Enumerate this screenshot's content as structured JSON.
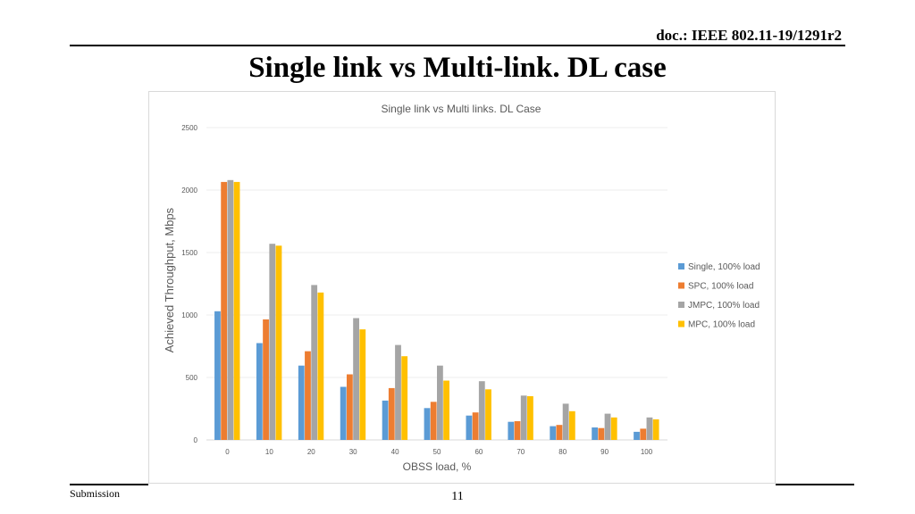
{
  "header": {
    "doc_id": "doc.: IEEE 802.11-19/1291r2"
  },
  "slide": {
    "title": "Single link vs Multi-link. DL case"
  },
  "footer": {
    "submission": "Submission",
    "page": "11"
  },
  "chart_data": {
    "type": "bar",
    "title": "Single link vs Multi links. DL Case",
    "xlabel": "OBSS load, %",
    "ylabel": "Achieved Throughput, Mbps",
    "ylim": [
      0,
      2500
    ],
    "yticks": [
      0,
      500,
      1000,
      1500,
      2000,
      2500
    ],
    "grid": true,
    "legend_position": "right",
    "categories": [
      "0",
      "10",
      "20",
      "30",
      "40",
      "50",
      "60",
      "70",
      "80",
      "90",
      "100"
    ],
    "series": [
      {
        "name": "Single, 100% load",
        "color": "#5b9bd5",
        "values": [
          1030,
          775,
          595,
          425,
          315,
          255,
          195,
          145,
          110,
          100,
          65
        ]
      },
      {
        "name": "SPC, 100% load",
        "color": "#ed7d31",
        "values": [
          2065,
          965,
          710,
          525,
          415,
          305,
          220,
          150,
          120,
          95,
          90
        ]
      },
      {
        "name": "JMPC, 100% load",
        "color": "#a5a5a5",
        "values": [
          2080,
          1570,
          1240,
          975,
          760,
          595,
          470,
          355,
          290,
          210,
          180
        ]
      },
      {
        "name": "MPC, 100% load",
        "color": "#ffc000",
        "values": [
          2065,
          1555,
          1180,
          885,
          670,
          475,
          405,
          350,
          230,
          180,
          165
        ]
      }
    ]
  }
}
